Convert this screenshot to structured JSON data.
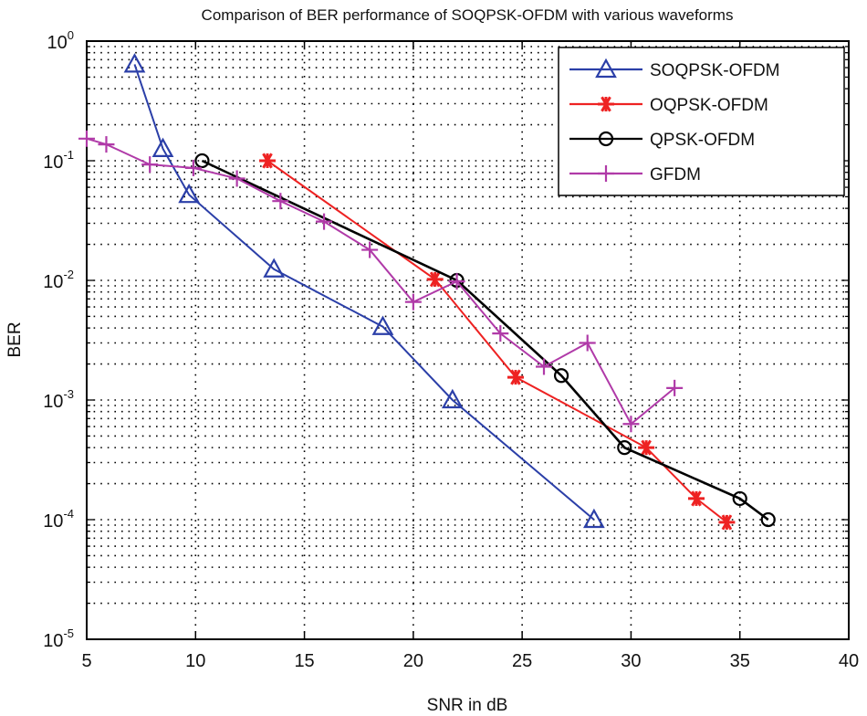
{
  "chart_data": {
    "type": "line",
    "title": "Comparison of BER performance of SOQPSK-OFDM with various waveforms",
    "xlabel": "SNR in dB",
    "ylabel": "BER",
    "xlim": [
      5,
      40
    ],
    "ylim": [
      1e-05,
      1
    ],
    "yscale": "log",
    "grid": true,
    "legend_position": "top-right",
    "x_ticks": [
      "5",
      "10",
      "15",
      "20",
      "25",
      "30",
      "35",
      "40"
    ],
    "y_ticks": [
      {
        "base": "10",
        "exp": "0"
      },
      {
        "base": "10",
        "exp": "-1"
      },
      {
        "base": "10",
        "exp": "-2"
      },
      {
        "base": "10",
        "exp": "-3"
      },
      {
        "base": "10",
        "exp": "-4"
      },
      {
        "base": "10",
        "exp": "-5"
      }
    ],
    "series": [
      {
        "name": "SOQPSK-OFDM",
        "color": "#2b3fa8",
        "marker": "triangle",
        "x": [
          7.2,
          8.5,
          9.7,
          13.6,
          18.6,
          21.8,
          28.3
        ],
        "y": [
          0.64,
          0.126,
          0.052,
          0.0124,
          0.0041,
          0.001,
          0.0001
        ]
      },
      {
        "name": "OQPSK-OFDM",
        "color": "#ee2222",
        "marker": "asterisk",
        "x": [
          13.3,
          21.0,
          24.7,
          30.7,
          33.0,
          34.4
        ],
        "y": [
          0.1,
          0.0102,
          0.00155,
          0.0004,
          0.00015,
          9.5e-05
        ]
      },
      {
        "name": "QPSK-OFDM",
        "color": "#000000",
        "marker": "circle",
        "x": [
          10.3,
          22.0,
          26.8,
          29.7,
          35.0,
          36.3
        ],
        "y": [
          0.1,
          0.01,
          0.0016,
          0.0004,
          0.00015,
          0.0001
        ]
      },
      {
        "name": "GFDM",
        "color": "#b03aa8",
        "marker": "plus",
        "x": [
          5.0,
          5.9,
          7.9,
          9.9,
          11.9,
          13.9,
          15.9,
          18.0,
          20.0,
          22.0,
          24.0,
          26.0,
          28.0,
          30.0,
          32.0
        ],
        "y": [
          0.153,
          0.137,
          0.093,
          0.087,
          0.071,
          0.046,
          0.031,
          0.018,
          0.0066,
          0.0098,
          0.0036,
          0.0019,
          0.003,
          0.00063,
          0.00126
        ]
      }
    ]
  }
}
